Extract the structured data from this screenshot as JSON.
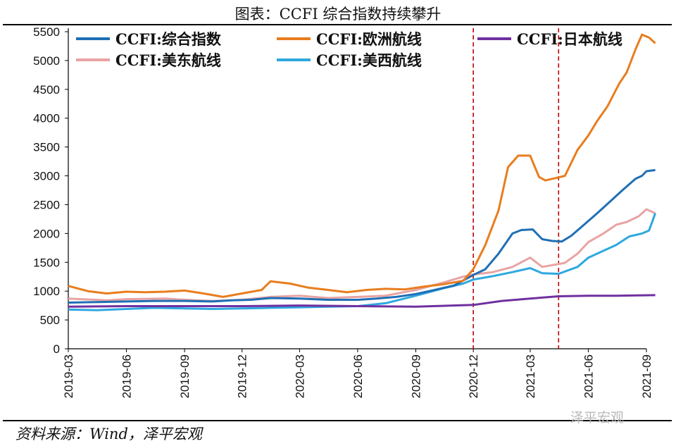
{
  "title": "图表：CCFI 综合指数持续攀升",
  "source": "资料来源：Wind，泽平宏观",
  "watermark": "泽平宏观",
  "chart_data": {
    "type": "line",
    "ylim": [
      0,
      5500
    ],
    "yticks": [
      0,
      500,
      1000,
      1500,
      2000,
      2500,
      3000,
      3500,
      4000,
      4500,
      5000,
      5500
    ],
    "xticks": [
      "2019-03",
      "2019-06",
      "2019-09",
      "2019-12",
      "2020-03",
      "2020-06",
      "2020-09",
      "2020-12",
      "2021-03",
      "2021-06",
      "2021-09"
    ],
    "xrange": [
      "2019-03-01",
      "2021-09-01"
    ],
    "reference_lines": [
      "2020-12-01",
      "2021-04-15"
    ],
    "series": [
      {
        "name": "CCFI:综合指数",
        "color": "#1f6fb5",
        "points": [
          [
            "2019-03-01",
            800
          ],
          [
            "2019-04-15",
            810
          ],
          [
            "2019-06-01",
            820
          ],
          [
            "2019-07-15",
            830
          ],
          [
            "2019-09-01",
            830
          ],
          [
            "2019-10-15",
            820
          ],
          [
            "2019-11-15",
            840
          ],
          [
            "2019-12-15",
            850
          ],
          [
            "2020-01-15",
            880
          ],
          [
            "2020-03-01",
            870
          ],
          [
            "2020-04-15",
            850
          ],
          [
            "2020-06-01",
            850
          ],
          [
            "2020-07-01",
            870
          ],
          [
            "2020-08-01",
            900
          ],
          [
            "2020-09-01",
            950
          ],
          [
            "2020-10-01",
            1020
          ],
          [
            "2020-11-01",
            1100
          ],
          [
            "2020-12-01",
            1280
          ],
          [
            "2020-12-20",
            1380
          ],
          [
            "2021-01-10",
            1650
          ],
          [
            "2021-02-01",
            2000
          ],
          [
            "2021-02-15",
            2060
          ],
          [
            "2021-03-05",
            2070
          ],
          [
            "2021-03-20",
            1900
          ],
          [
            "2021-04-05",
            1870
          ],
          [
            "2021-04-20",
            1860
          ],
          [
            "2021-05-05",
            1960
          ],
          [
            "2021-05-25",
            2150
          ],
          [
            "2021-06-15",
            2350
          ],
          [
            "2021-07-05",
            2550
          ],
          [
            "2021-07-25",
            2750
          ],
          [
            "2021-08-15",
            2950
          ],
          [
            "2021-08-25",
            3000
          ],
          [
            "2021-09-01",
            3080
          ],
          [
            "2021-09-15",
            3100
          ]
        ]
      },
      {
        "name": "CCFI:欧洲航线",
        "color": "#e87d1e",
        "points": [
          [
            "2019-03-01",
            1090
          ],
          [
            "2019-04-01",
            1000
          ],
          [
            "2019-05-01",
            960
          ],
          [
            "2019-06-01",
            990
          ],
          [
            "2019-07-01",
            980
          ],
          [
            "2019-08-01",
            990
          ],
          [
            "2019-09-01",
            1010
          ],
          [
            "2019-10-01",
            960
          ],
          [
            "2019-11-01",
            900
          ],
          [
            "2019-12-01",
            960
          ],
          [
            "2020-01-01",
            1020
          ],
          [
            "2020-01-15",
            1170
          ],
          [
            "2020-02-15",
            1130
          ],
          [
            "2020-03-15",
            1060
          ],
          [
            "2020-04-15",
            1020
          ],
          [
            "2020-05-15",
            980
          ],
          [
            "2020-06-15",
            1020
          ],
          [
            "2020-07-15",
            1040
          ],
          [
            "2020-08-15",
            1030
          ],
          [
            "2020-09-15",
            1080
          ],
          [
            "2020-10-15",
            1120
          ],
          [
            "2020-11-15",
            1180
          ],
          [
            "2020-12-01",
            1380
          ],
          [
            "2020-12-20",
            1800
          ],
          [
            "2021-01-10",
            2400
          ],
          [
            "2021-01-25",
            3150
          ],
          [
            "2021-02-10",
            3350
          ],
          [
            "2021-03-01",
            3350
          ],
          [
            "2021-03-15",
            2980
          ],
          [
            "2021-03-25",
            2920
          ],
          [
            "2021-04-10",
            2960
          ],
          [
            "2021-04-25",
            3000
          ],
          [
            "2021-05-15",
            3450
          ],
          [
            "2021-06-01",
            3700
          ],
          [
            "2021-06-15",
            3950
          ],
          [
            "2021-07-01",
            4200
          ],
          [
            "2021-07-20",
            4600
          ],
          [
            "2021-08-01",
            4800
          ],
          [
            "2021-08-15",
            5200
          ],
          [
            "2021-08-25",
            5450
          ],
          [
            "2021-09-05",
            5400
          ],
          [
            "2021-09-15",
            5300
          ]
        ]
      },
      {
        "name": "CCFI:日本航线",
        "color": "#7030a0",
        "points": [
          [
            "2019-03-01",
            730
          ],
          [
            "2019-06-01",
            740
          ],
          [
            "2019-09-01",
            740
          ],
          [
            "2019-12-01",
            740
          ],
          [
            "2020-03-01",
            750
          ],
          [
            "2020-06-01",
            740
          ],
          [
            "2020-09-01",
            730
          ],
          [
            "2020-12-01",
            760
          ],
          [
            "2021-01-15",
            830
          ],
          [
            "2021-03-01",
            870
          ],
          [
            "2021-04-15",
            910
          ],
          [
            "2021-06-01",
            920
          ],
          [
            "2021-07-15",
            920
          ],
          [
            "2021-09-15",
            930
          ]
        ]
      },
      {
        "name": "CCFI:美东航线",
        "color": "#e8a3a3",
        "points": [
          [
            "2019-03-01",
            870
          ],
          [
            "2019-05-01",
            840
          ],
          [
            "2019-06-01",
            860
          ],
          [
            "2019-08-01",
            870
          ],
          [
            "2019-09-01",
            850
          ],
          [
            "2019-10-15",
            830
          ],
          [
            "2019-12-01",
            850
          ],
          [
            "2020-01-15",
            900
          ],
          [
            "2020-03-01",
            920
          ],
          [
            "2020-04-15",
            880
          ],
          [
            "2020-06-01",
            900
          ],
          [
            "2020-07-15",
            920
          ],
          [
            "2020-09-01",
            1020
          ],
          [
            "2020-10-15",
            1150
          ],
          [
            "2020-11-15",
            1250
          ],
          [
            "2020-12-01",
            1290
          ],
          [
            "2021-01-01",
            1330
          ],
          [
            "2021-02-01",
            1420
          ],
          [
            "2021-03-01",
            1580
          ],
          [
            "2021-03-20",
            1420
          ],
          [
            "2021-04-10",
            1460
          ],
          [
            "2021-04-25",
            1490
          ],
          [
            "2021-05-15",
            1650
          ],
          [
            "2021-06-01",
            1850
          ],
          [
            "2021-06-25",
            2000
          ],
          [
            "2021-07-15",
            2150
          ],
          [
            "2021-08-01",
            2200
          ],
          [
            "2021-08-20",
            2300
          ],
          [
            "2021-09-01",
            2420
          ],
          [
            "2021-09-15",
            2350
          ]
        ]
      },
      {
        "name": "CCFI:美西航线",
        "color": "#2ea8df",
        "points": [
          [
            "2019-03-01",
            680
          ],
          [
            "2019-04-15",
            670
          ],
          [
            "2019-06-01",
            690
          ],
          [
            "2019-07-15",
            710
          ],
          [
            "2019-09-01",
            700
          ],
          [
            "2019-10-15",
            690
          ],
          [
            "2019-12-01",
            700
          ],
          [
            "2020-01-15",
            710
          ],
          [
            "2020-03-01",
            720
          ],
          [
            "2020-04-15",
            730
          ],
          [
            "2020-06-01",
            740
          ],
          [
            "2020-07-15",
            790
          ],
          [
            "2020-09-01",
            920
          ],
          [
            "2020-10-15",
            1050
          ],
          [
            "2020-11-15",
            1130
          ],
          [
            "2020-12-01",
            1200
          ],
          [
            "2021-01-01",
            1260
          ],
          [
            "2021-02-01",
            1330
          ],
          [
            "2021-03-01",
            1400
          ],
          [
            "2021-03-20",
            1310
          ],
          [
            "2021-04-15",
            1300
          ],
          [
            "2021-05-15",
            1420
          ],
          [
            "2021-06-01",
            1580
          ],
          [
            "2021-06-25",
            1700
          ],
          [
            "2021-07-15",
            1800
          ],
          [
            "2021-08-05",
            1950
          ],
          [
            "2021-08-25",
            2000
          ],
          [
            "2021-09-05",
            2050
          ],
          [
            "2021-09-15",
            2350
          ]
        ]
      }
    ]
  }
}
